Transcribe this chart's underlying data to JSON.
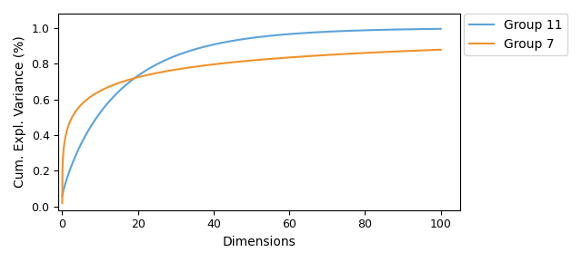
{
  "xlabel": "Dimensions",
  "ylabel": "Cum. Expl. Variance (%)",
  "xlim": [
    -1,
    105
  ],
  "ylim": [
    -0.02,
    1.08
  ],
  "x_ticks": [
    0,
    20,
    40,
    60,
    80,
    100
  ],
  "y_ticks": [
    0.0,
    0.2,
    0.4,
    0.6,
    0.8,
    1.0
  ],
  "group11_color": "#5ba3d9",
  "group7_color": "#f0922b",
  "group11_label": "Group 11",
  "group7_label": "Group 7",
  "group11_a": 0.33,
  "group11_b": 0.45,
  "group7_a": 0.2,
  "group7_b": 0.52,
  "x_max": 100,
  "figsize": [
    6.4,
    2.89
  ],
  "dpi": 100,
  "legend_fontsize": 10,
  "axis_fontsize": 10,
  "linewidth": 1.5
}
